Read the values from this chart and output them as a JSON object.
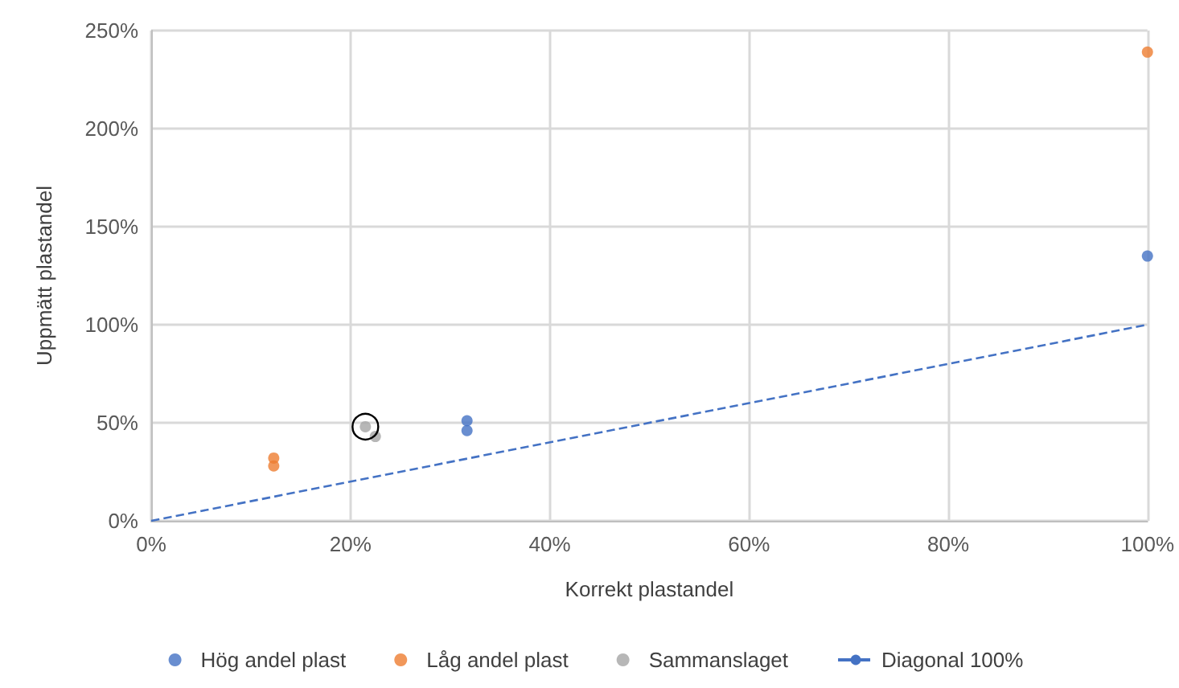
{
  "chart_data": {
    "type": "scatter",
    "xlabel": "Korrekt plastandel",
    "ylabel": "Uppmätt plastandel",
    "series": [
      {
        "name": "Hög andel plast",
        "color": "#4472c4",
        "x": [
          31.7,
          31.7,
          100
        ],
        "values": [
          51,
          46,
          135
        ]
      },
      {
        "name": "Låg andel plast",
        "color": "#ed7d31",
        "x": [
          12.3,
          12.3,
          100
        ],
        "values": [
          32,
          28,
          239
        ]
      },
      {
        "name": "Sammanslaget",
        "color": "#a5a5a5",
        "x": [
          21.5,
          22.5
        ],
        "values": [
          48,
          43
        ]
      },
      {
        "name": "Diagonal 100%",
        "type": "line",
        "line_style": "dashed",
        "marker": "none",
        "color": "#4472c4",
        "x": [
          0,
          100
        ],
        "values": [
          0,
          100
        ]
      }
    ],
    "xlim": [
      0,
      100
    ],
    "xticks": [
      {
        "value": 0,
        "label": "0%"
      },
      {
        "value": 20,
        "label": "20%"
      },
      {
        "value": 40,
        "label": "40%"
      },
      {
        "value": 60,
        "label": "60%"
      },
      {
        "value": 80,
        "label": "80%"
      },
      {
        "value": 100,
        "label": "100%"
      }
    ],
    "ylim": [
      0,
      250
    ],
    "yticks": [
      {
        "value": 0,
        "label": "0%"
      },
      {
        "value": 50,
        "label": "50%"
      },
      {
        "value": 100,
        "label": "100%"
      },
      {
        "value": 150,
        "label": "150%"
      },
      {
        "value": 200,
        "label": "200%"
      },
      {
        "value": 250,
        "label": "250%"
      }
    ],
    "grid": true,
    "legend": "bottom",
    "marker": "circle"
  }
}
